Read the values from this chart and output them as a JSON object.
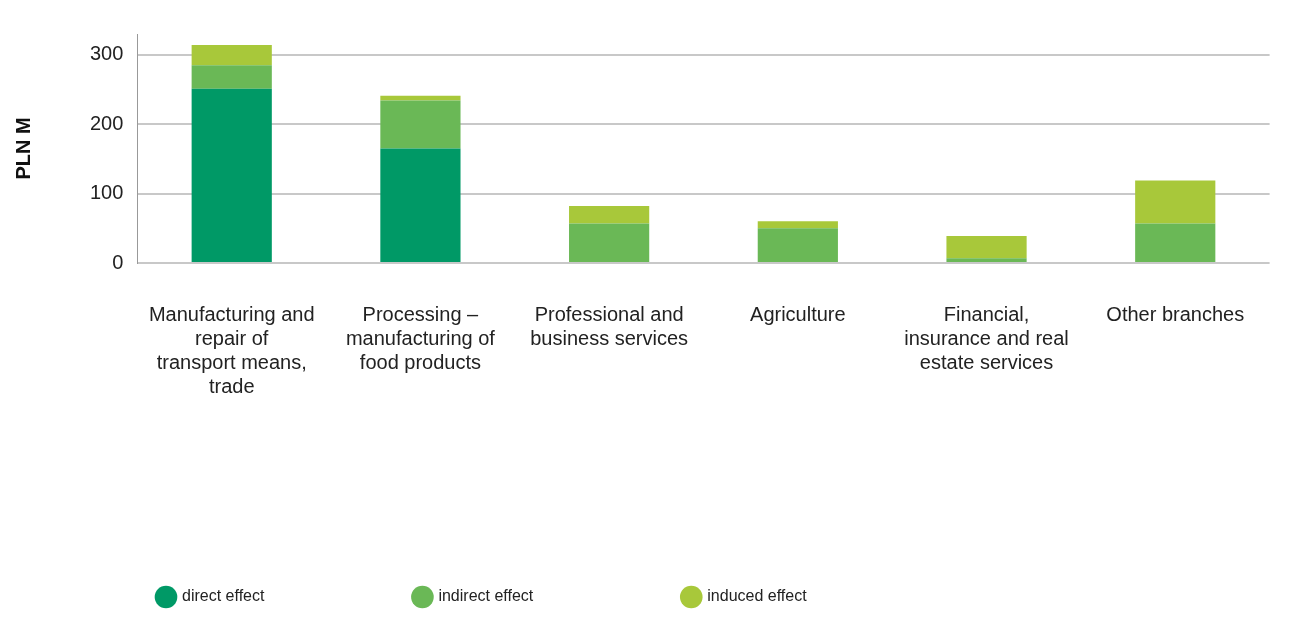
{
  "chart_data": {
    "type": "bar",
    "stacked": true,
    "ylabel": "PLN M",
    "categories": [
      "Manufacturing and repair of transport means, trade",
      "Processing – manufacturing of food products",
      "Professional and business services",
      "Agriculture",
      "Financial, insurance and real estate services",
      "Other branches"
    ],
    "series": [
      {
        "name": "direct effect",
        "color": "#009966",
        "values": [
          251,
          165,
          0,
          0,
          0,
          0
        ]
      },
      {
        "name": "indirect effect",
        "color": "#6ab856",
        "values": [
          34,
          69,
          57,
          50,
          7,
          57
        ]
      },
      {
        "name": "induced effect",
        "color": "#a8c83a",
        "values": [
          29,
          7,
          25,
          10,
          32,
          62
        ]
      }
    ],
    "ylim": [
      0,
      330
    ],
    "yticks": [
      0,
      100,
      200,
      300
    ],
    "grid": "y",
    "legend": "bottom left",
    "marker": "circle"
  }
}
